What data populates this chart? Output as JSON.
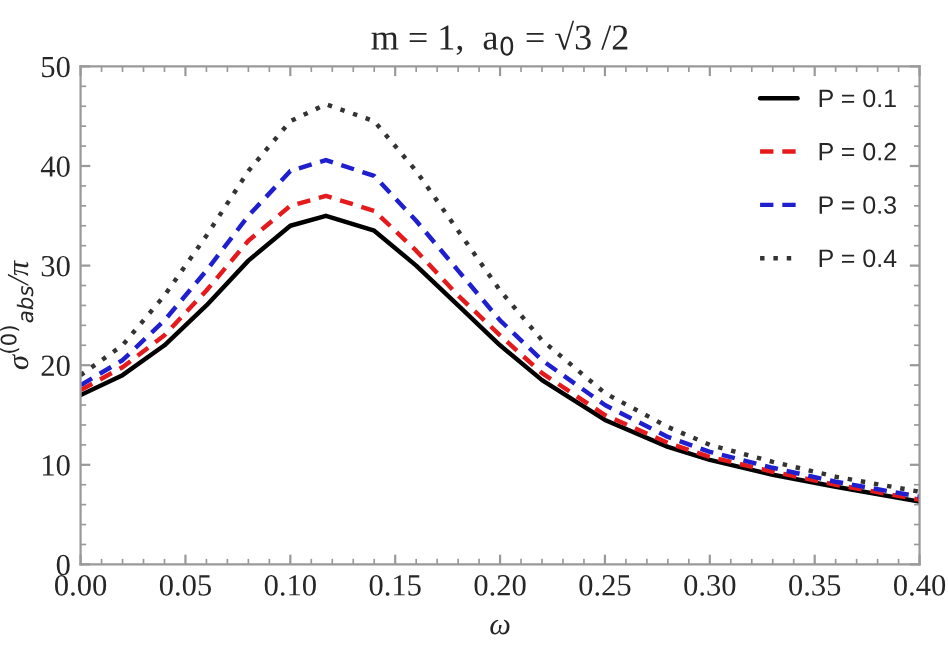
{
  "chart_data": {
    "type": "line",
    "title": "m = 1,  a$_{0}$ = √3 /2",
    "xlabel": "ω",
    "ylabel": "σ$^{(0)}$$_{abs}$/π",
    "x": [
      0,
      0.02,
      0.04,
      0.06,
      0.08,
      0.1,
      0.117,
      0.14,
      0.16,
      0.18,
      0.2,
      0.22,
      0.25,
      0.28,
      0.3,
      0.33,
      0.36,
      0.4
    ],
    "series": [
      {
        "name": "P = 0.1",
        "color": "#000000",
        "line_style": "solid",
        "values": [
          17,
          19,
          22,
          26,
          30.5,
          34,
          35,
          33.5,
          30,
          26,
          22,
          18.5,
          14.5,
          11.8,
          10.5,
          9,
          7.8,
          6.3
        ]
      },
      {
        "name": "P = 0.2",
        "color": "#e41a1c",
        "line_style": "dashed",
        "values": [
          17.5,
          19.8,
          23,
          27.5,
          32.5,
          36,
          37,
          35.5,
          31.5,
          27,
          23,
          19.2,
          15,
          12.2,
          10.8,
          9.3,
          8,
          6.5
        ]
      },
      {
        "name": "P = 0.3",
        "color": "#1f1fd0",
        "line_style": "dashed",
        "values": [
          18,
          20.5,
          24.5,
          29.5,
          35,
          39.5,
          40.6,
          39,
          34.5,
          29.5,
          24.5,
          20.5,
          16,
          12.8,
          11.3,
          9.7,
          8.3,
          6.8
        ]
      },
      {
        "name": "P = 0.4",
        "color": "#333333",
        "line_style": "dotted",
        "values": [
          19,
          22,
          27,
          33,
          39.5,
          44.5,
          46.2,
          44.5,
          39.5,
          33.5,
          27.5,
          22.5,
          17.2,
          13.8,
          12,
          10.3,
          8.8,
          7.3
        ]
      }
    ],
    "xlim": [
      0,
      0.4
    ],
    "ylim": [
      0,
      50
    ],
    "xticks": [
      {
        "value": 0,
        "label": "0.00"
      },
      0.05,
      {
        "value": 0.1,
        "label": "0.10"
      },
      0.15,
      {
        "value": 0.2,
        "label": "0.20"
      },
      0.25,
      {
        "value": 0.3,
        "label": "0.30"
      },
      0.35,
      {
        "value": 0.4,
        "label": "0.40"
      }
    ],
    "yticks": [
      0,
      10,
      20,
      30,
      40,
      50
    ],
    "grid": false,
    "legend": "top right"
  }
}
